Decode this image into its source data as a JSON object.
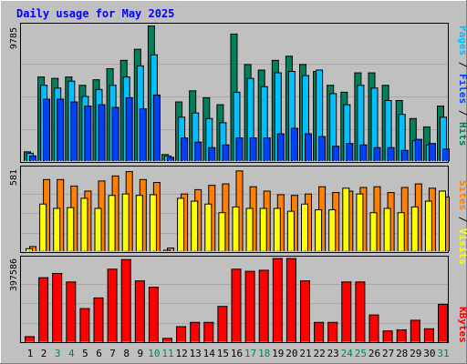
{
  "title": "Daily usage for May 2025",
  "colors": {
    "background": "#c0c0c0",
    "title": "#0000ff",
    "hits": "#00805c",
    "files": "#00c0ff",
    "pages": "#0040ff",
    "visits": "#ffff00",
    "sites": "#ff8000",
    "kbytes": "#ff0000",
    "weekend_day": "#00805c",
    "weekday_day": "#000000"
  },
  "chart_data": [
    {
      "type": "bar",
      "panel": "hits-files-pages",
      "title": "Daily usage for May 2025",
      "categories": [
        "1",
        "2",
        "3",
        "4",
        "5",
        "6",
        "7",
        "8",
        "9",
        "10",
        "11",
        "12",
        "13",
        "14",
        "15",
        "16",
        "17",
        "18",
        "19",
        "20",
        "21",
        "22",
        "23",
        "24",
        "25",
        "26",
        "27",
        "28",
        "29",
        "30",
        "31"
      ],
      "weekend_days": [
        "3",
        "4",
        "10",
        "11",
        "17",
        "18",
        "24",
        "25",
        "31"
      ],
      "ymax_label": "9785",
      "ylim": [
        0,
        9785
      ],
      "legend": [
        "Pages",
        "Files",
        "Hits"
      ],
      "series": [
        {
          "name": "Hits",
          "values": [
            700,
            6100,
            6000,
            6100,
            5500,
            5900,
            6700,
            7300,
            8100,
            9785,
            500,
            4300,
            5100,
            4600,
            4100,
            9200,
            7000,
            6600,
            7300,
            7600,
            7000,
            6500,
            5500,
            5000,
            6400,
            6400,
            5500,
            4400,
            3100,
            2500,
            4000
          ]
        },
        {
          "name": "Files",
          "values": [
            600,
            5500,
            5300,
            5800,
            4700,
            5200,
            5500,
            6100,
            6900,
            7700,
            400,
            3200,
            3500,
            3100,
            2800,
            5000,
            6000,
            5400,
            6400,
            6500,
            6200,
            6600,
            4900,
            4100,
            5500,
            5300,
            4400,
            3400,
            1500,
            1200,
            3200
          ]
        },
        {
          "name": "Pages",
          "values": [
            400,
            4500,
            4500,
            4300,
            4000,
            4100,
            3900,
            4600,
            3800,
            4800,
            300,
            1700,
            1400,
            1000,
            1200,
            1700,
            1700,
            1700,
            2000,
            2400,
            2000,
            1800,
            1100,
            1300,
            1200,
            1000,
            1000,
            800,
            1600,
            1300,
            900
          ]
        }
      ]
    },
    {
      "type": "bar",
      "panel": "visits-sites",
      "categories": [
        "1",
        "2",
        "3",
        "4",
        "5",
        "6",
        "7",
        "8",
        "9",
        "10",
        "11",
        "12",
        "13",
        "14",
        "15",
        "16",
        "17",
        "18",
        "19",
        "20",
        "21",
        "22",
        "23",
        "24",
        "25",
        "26",
        "27",
        "28",
        "29",
        "30",
        "31"
      ],
      "ymax_label": "581",
      "ylim": [
        0,
        581
      ],
      "legend": [
        "Sites",
        "Visits"
      ],
      "series": [
        {
          "name": "Visits",
          "values": [
            20,
            330,
            300,
            305,
            370,
            300,
            390,
            400,
            390,
            395,
            10,
            370,
            350,
            330,
            270,
            310,
            300,
            300,
            300,
            280,
            330,
            290,
            290,
            440,
            400,
            270,
            300,
            270,
            310,
            350,
            420
          ]
        },
        {
          "name": "Sites",
          "values": [
            35,
            500,
            500,
            455,
            420,
            490,
            525,
            555,
            500,
            480,
            25,
            400,
            430,
            460,
            470,
            560,
            450,
            420,
            395,
            390,
            400,
            450,
            410,
            420,
            445,
            450,
            410,
            445,
            470,
            440,
            380
          ]
        }
      ]
    },
    {
      "type": "bar",
      "panel": "kbytes",
      "categories": [
        "1",
        "2",
        "3",
        "4",
        "5",
        "6",
        "7",
        "8",
        "9",
        "10",
        "11",
        "12",
        "13",
        "14",
        "15",
        "16",
        "17",
        "18",
        "19",
        "20",
        "21",
        "22",
        "23",
        "24",
        "25",
        "26",
        "27",
        "28",
        "29",
        "30",
        "31"
      ],
      "ymax_label": "397586",
      "ylim": [
        0,
        397586
      ],
      "legend": [
        "KBytes"
      ],
      "series": [
        {
          "name": "KBytes",
          "values": [
            28000,
            305000,
            325000,
            285000,
            160000,
            210000,
            345000,
            390000,
            290000,
            260000,
            20000,
            75000,
            95000,
            95000,
            170000,
            345000,
            335000,
            340000,
            395000,
            395000,
            290000,
            95000,
            95000,
            285000,
            285000,
            130000,
            55000,
            60000,
            105000,
            65000,
            180000
          ]
        }
      ]
    }
  ]
}
